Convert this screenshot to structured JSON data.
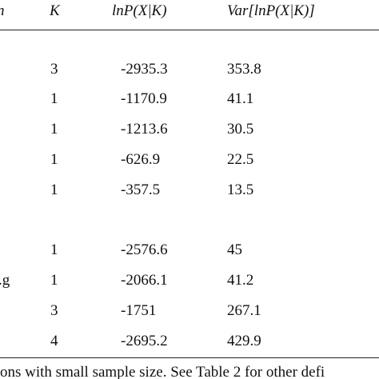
{
  "table": {
    "header": [
      "n",
      "K",
      "lnP(X|K)",
      "Var[lnP(X|K)]"
    ],
    "rows": [
      {
        "k": 3,
        "lnp": -2935.3,
        "var": 353.8
      },
      {
        "k": 1,
        "lnp": -1170.9,
        "var": 41.1
      },
      {
        "k": 1,
        "lnp": -1213.6,
        "var": 30.5
      },
      {
        "k": 1,
        "lnp": -626.9,
        "var": 22.5
      },
      {
        "k": 1,
        "lnp": -357.5,
        "var": 13.5
      },
      {
        "k": 1,
        "lnp": -2576.6,
        "var": 45
      },
      {
        "label": ".g",
        "k": 1,
        "lnp": -2066.1,
        "var": 41.2
      },
      {
        "k": 3,
        "lnp": -1751,
        "var": 267.1
      },
      {
        "k": 4,
        "lnp": -2695.2,
        "var": 429.9
      }
    ],
    "footnote": "ons with small sample size. See Table 2 for other defi"
  }
}
